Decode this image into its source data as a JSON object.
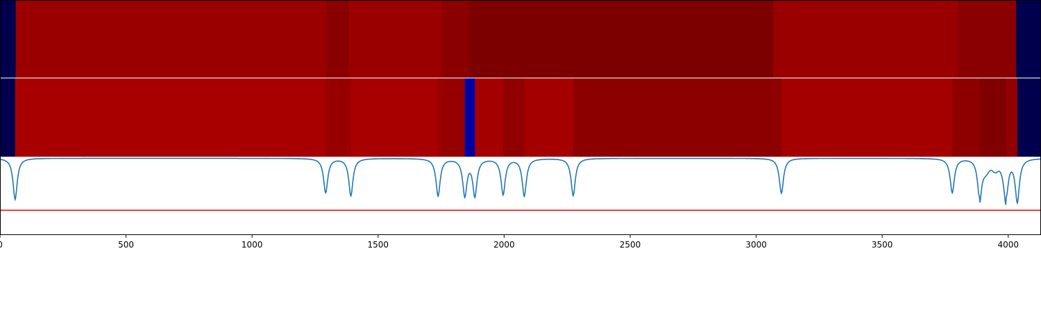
{
  "chart_data": [
    {
      "type": "heatmap",
      "name": "segment-strip-top",
      "xlim": [
        0,
        4130
      ],
      "segments": [
        {
          "start": 0,
          "end": 62,
          "color": "#00004e"
        },
        {
          "start": 62,
          "end": 1294,
          "color": "#9a0000"
        },
        {
          "start": 1294,
          "end": 1384,
          "color": "#8a0000"
        },
        {
          "start": 1384,
          "end": 1754,
          "color": "#9a0000"
        },
        {
          "start": 1754,
          "end": 1862,
          "color": "#8a0000"
        },
        {
          "start": 1862,
          "end": 3068,
          "color": "#7c0000"
        },
        {
          "start": 3068,
          "end": 3800,
          "color": "#9a0000"
        },
        {
          "start": 3800,
          "end": 4031,
          "color": "#8a0000"
        },
        {
          "start": 4031,
          "end": 4130,
          "color": "#00004e"
        }
      ]
    },
    {
      "type": "heatmap",
      "name": "segment-strip-bottom",
      "xlim": [
        0,
        4130
      ],
      "segments": [
        {
          "start": 0,
          "end": 60,
          "color": "#00004e"
        },
        {
          "start": 60,
          "end": 1292,
          "color": "#a80000"
        },
        {
          "start": 1292,
          "end": 1392,
          "color": "#980000"
        },
        {
          "start": 1392,
          "end": 1738,
          "color": "#a80000"
        },
        {
          "start": 1738,
          "end": 1844,
          "color": "#960000"
        },
        {
          "start": 1844,
          "end": 1884,
          "color": "#0000a4"
        },
        {
          "start": 1884,
          "end": 1996,
          "color": "#a40000"
        },
        {
          "start": 1996,
          "end": 2080,
          "color": "#900000"
        },
        {
          "start": 2080,
          "end": 2274,
          "color": "#a40000"
        },
        {
          "start": 2274,
          "end": 3100,
          "color": "#8c0000"
        },
        {
          "start": 3100,
          "end": 3778,
          "color": "#a40000"
        },
        {
          "start": 3778,
          "end": 3886,
          "color": "#8e0000"
        },
        {
          "start": 3886,
          "end": 3992,
          "color": "#800000"
        },
        {
          "start": 3992,
          "end": 4036,
          "color": "#920000"
        },
        {
          "start": 4036,
          "end": 4130,
          "color": "#00004e"
        }
      ]
    },
    {
      "type": "line",
      "name": "signal-panel",
      "xlim": [
        0,
        4130
      ],
      "ylim": [
        0,
        1
      ],
      "xticks": [
        0,
        500,
        1000,
        1500,
        2000,
        2500,
        3000,
        3500,
        4000
      ],
      "xtick_labels": [
        "0",
        "500",
        "1000",
        "1500",
        "2000",
        "2500",
        "3000",
        "3500",
        "4000"
      ],
      "threshold": {
        "y": 0.31,
        "color": "#ff0000"
      },
      "line_color": "#1f77b4",
      "baseline": 0.98,
      "dips": [
        {
          "x": 60,
          "y": 0.45
        },
        {
          "x": 1292,
          "y": 0.54
        },
        {
          "x": 1392,
          "y": 0.5
        },
        {
          "x": 1738,
          "y": 0.5
        },
        {
          "x": 1844,
          "y": 0.51
        },
        {
          "x": 1884,
          "y": 0.51
        },
        {
          "x": 1996,
          "y": 0.52
        },
        {
          "x": 2080,
          "y": 0.5
        },
        {
          "x": 2274,
          "y": 0.5
        },
        {
          "x": 3100,
          "y": 0.53
        },
        {
          "x": 3778,
          "y": 0.54
        },
        {
          "x": 3886,
          "y": 0.49
        },
        {
          "x": 3992,
          "y": 0.51
        },
        {
          "x": 4036,
          "y": 0.43
        }
      ],
      "hump": {
        "xStart": 3886,
        "xEnd": 3992,
        "y": 0.88
      }
    }
  ]
}
